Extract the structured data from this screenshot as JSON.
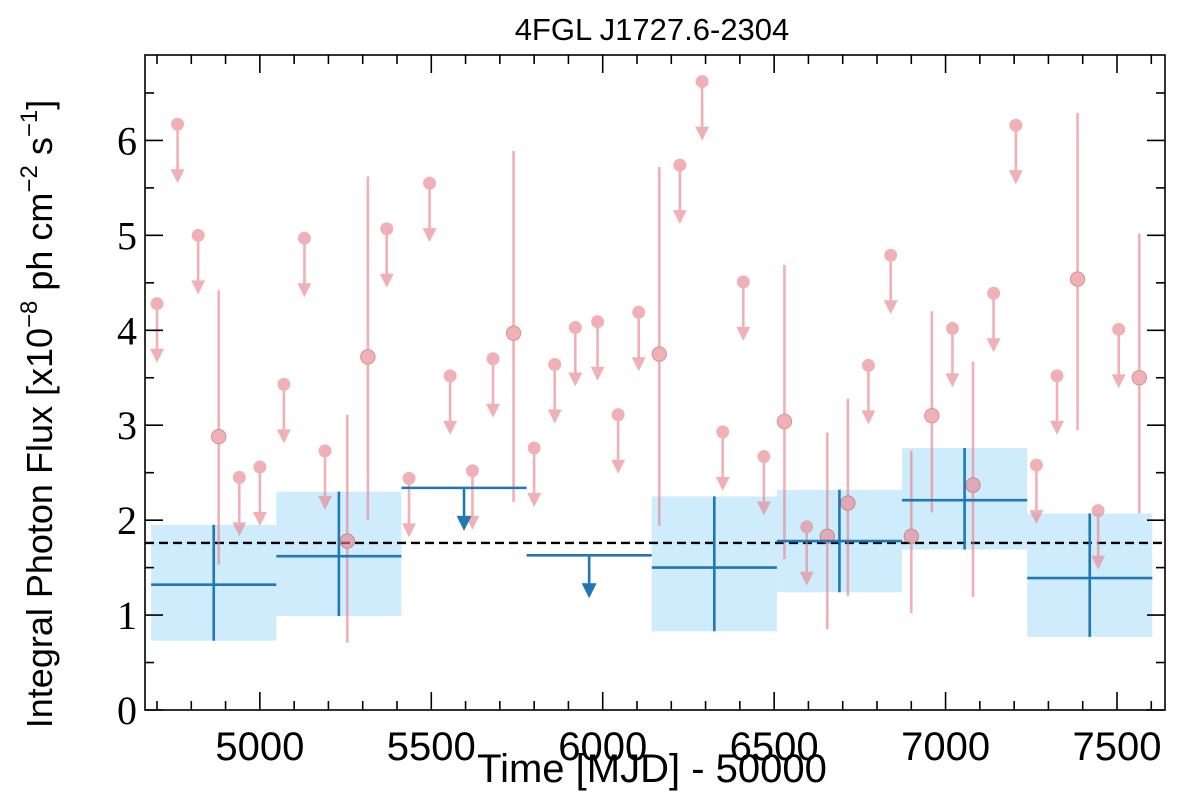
{
  "chart_data": {
    "type": "scatter",
    "title": "4FGL J1727.6-2304",
    "xlabel": "Time [MJD] - 50000",
    "ylabel": "Integral Photon Flux [x10$^{-8}$ ph cm$^{-2}$ s$^{-1}$]",
    "ylabel_parts": {
      "prefix": "Integral Photon Flux [x10",
      "exp1": "−8",
      "mid": " ph cm",
      "exp2": "−2",
      "mid2": " s",
      "exp3": "−1",
      "suffix": "]"
    },
    "xlim": [
      4665,
      7640
    ],
    "ylim": [
      0,
      6.9
    ],
    "xticks": [
      5000,
      5500,
      6000,
      6500,
      7000,
      7500
    ],
    "xtick_labels": [
      "5000",
      "5500",
      "6000",
      "6500",
      "7000",
      "7500"
    ],
    "yticks": [
      0,
      1,
      2,
      3,
      4,
      5,
      6
    ],
    "ytick_labels": [
      "0",
      "1",
      "2",
      "3",
      "4",
      "5",
      "6"
    ],
    "average_flux": 1.76,
    "colors": {
      "monthly": "#e8828a",
      "yearly": "#1f77b4",
      "band": "#bfe6fb",
      "average_line": "#000000"
    },
    "series": [
      {
        "kind": "monthly_upper_limits",
        "points": [
          {
            "x": 4700,
            "y": 4.28
          },
          {
            "x": 4760,
            "y": 6.17
          },
          {
            "x": 4820,
            "y": 5.0
          },
          {
            "x": 4940,
            "y": 2.45
          },
          {
            "x": 5000,
            "y": 2.56
          },
          {
            "x": 5070,
            "y": 3.43
          },
          {
            "x": 5130,
            "y": 4.97
          },
          {
            "x": 5190,
            "y": 2.73
          },
          {
            "x": 5370,
            "y": 5.07
          },
          {
            "x": 5435,
            "y": 2.44
          },
          {
            "x": 5495,
            "y": 5.55
          },
          {
            "x": 5555,
            "y": 3.52
          },
          {
            "x": 5620,
            "y": 2.52
          },
          {
            "x": 5680,
            "y": 3.7
          },
          {
            "x": 5800,
            "y": 2.76
          },
          {
            "x": 5860,
            "y": 3.64
          },
          {
            "x": 5920,
            "y": 4.03
          },
          {
            "x": 5985,
            "y": 4.09
          },
          {
            "x": 6045,
            "y": 3.11
          },
          {
            "x": 6105,
            "y": 4.19
          },
          {
            "x": 6225,
            "y": 5.74
          },
          {
            "x": 6290,
            "y": 6.62
          },
          {
            "x": 6350,
            "y": 2.93
          },
          {
            "x": 6410,
            "y": 4.51
          },
          {
            "x": 6470,
            "y": 2.67
          },
          {
            "x": 6595,
            "y": 1.93
          },
          {
            "x": 6775,
            "y": 3.63
          },
          {
            "x": 6840,
            "y": 4.79
          },
          {
            "x": 7020,
            "y": 4.02
          },
          {
            "x": 7140,
            "y": 4.39
          },
          {
            "x": 7205,
            "y": 6.16
          },
          {
            "x": 7265,
            "y": 2.58
          },
          {
            "x": 7325,
            "y": 3.52
          },
          {
            "x": 7445,
            "y": 2.1
          },
          {
            "x": 7505,
            "y": 4.01
          }
        ]
      },
      {
        "kind": "monthly_detections",
        "points": [
          {
            "x": 4880,
            "y": 2.88,
            "lo": 1.53,
            "hi": 4.42
          },
          {
            "x": 5255,
            "y": 1.78,
            "lo": 0.71,
            "hi": 3.11
          },
          {
            "x": 5315,
            "y": 3.72,
            "lo": 2.0,
            "hi": 5.62
          },
          {
            "x": 5740,
            "y": 3.97,
            "lo": 2.19,
            "hi": 5.89
          },
          {
            "x": 6165,
            "y": 3.75,
            "lo": 1.94,
            "hi": 5.72
          },
          {
            "x": 6530,
            "y": 3.04,
            "lo": 1.59,
            "hi": 4.69
          },
          {
            "x": 6655,
            "y": 1.83,
            "lo": 0.85,
            "hi": 2.92
          },
          {
            "x": 6715,
            "y": 2.18,
            "lo": 1.2,
            "hi": 3.28
          },
          {
            "x": 6900,
            "y": 1.83,
            "lo": 1.02,
            "hi": 2.73
          },
          {
            "x": 6960,
            "y": 3.1,
            "lo": 2.08,
            "hi": 4.2
          },
          {
            "x": 7080,
            "y": 2.37,
            "lo": 1.19,
            "hi": 3.67
          },
          {
            "x": 7385,
            "y": 4.54,
            "lo": 2.95,
            "hi": 6.29
          },
          {
            "x": 7565,
            "y": 3.5,
            "lo": 2.07,
            "hi": 5.02
          }
        ]
      },
      {
        "kind": "yearly_detections",
        "points": [
          {
            "x0": 4683,
            "x1": 5048,
            "y": 1.32,
            "lo": 0.73,
            "hi": 1.95
          },
          {
            "x0": 5048,
            "x1": 5413,
            "y": 1.62,
            "lo": 0.99,
            "hi": 2.3
          },
          {
            "x0": 6143,
            "x1": 6508,
            "y": 1.5,
            "lo": 0.83,
            "hi": 2.25
          },
          {
            "x0": 6508,
            "x1": 6873,
            "y": 1.78,
            "lo": 1.24,
            "hi": 2.32
          },
          {
            "x0": 6873,
            "x1": 7238,
            "y": 2.21,
            "lo": 1.69,
            "hi": 2.76
          },
          {
            "x0": 7238,
            "x1": 7603,
            "y": 1.39,
            "lo": 0.77,
            "hi": 2.07
          }
        ]
      },
      {
        "kind": "yearly_upper_limits",
        "points": [
          {
            "x0": 5413,
            "x1": 5778,
            "y": 2.34
          },
          {
            "x0": 5778,
            "x1": 6143,
            "y": 1.63
          }
        ]
      }
    ]
  }
}
